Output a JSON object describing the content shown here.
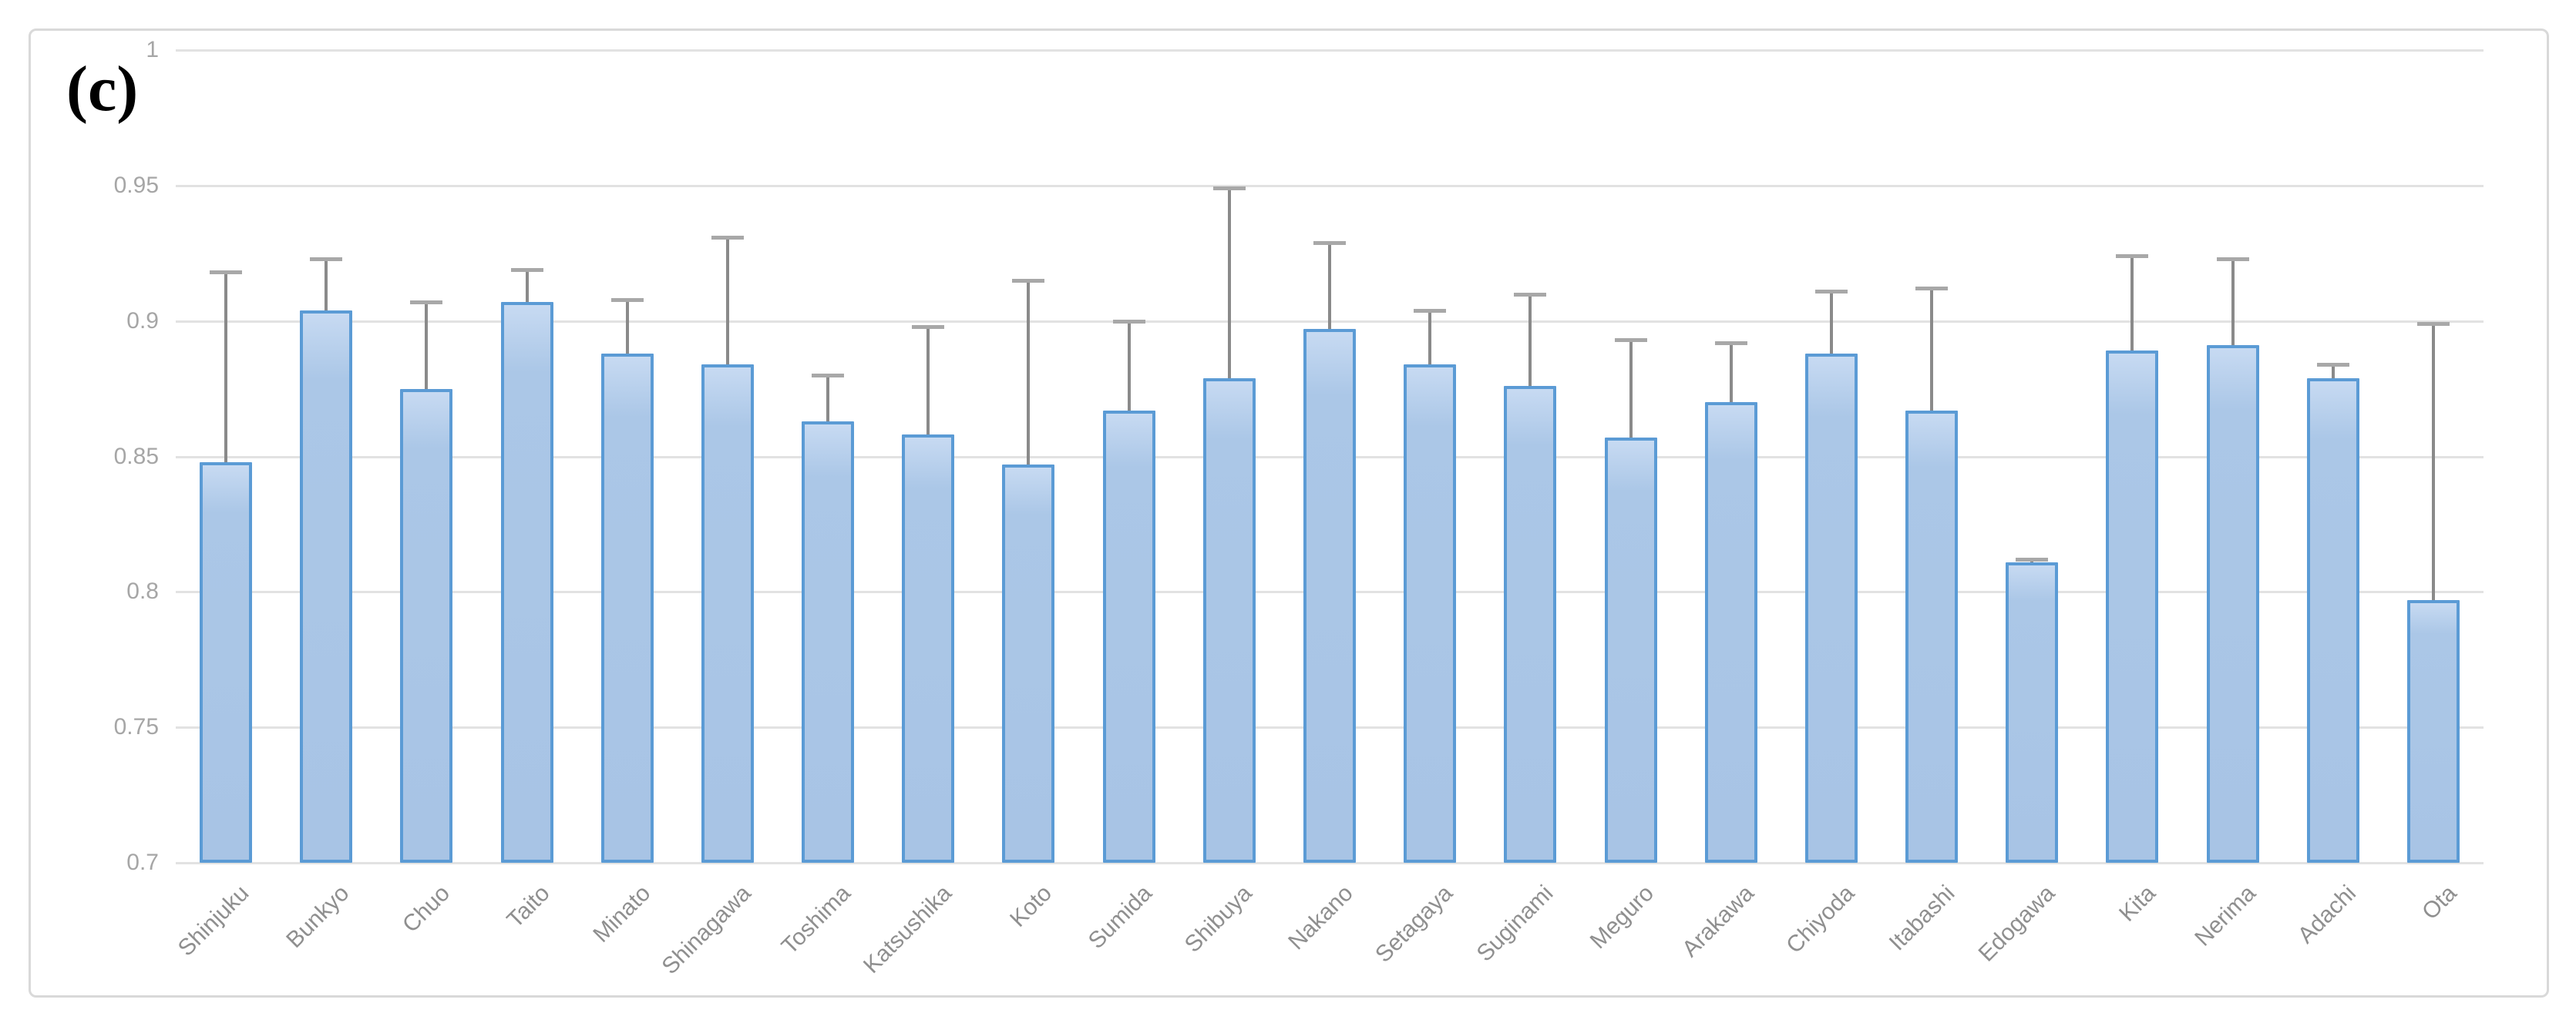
{
  "figure": {
    "panel_label": "(c)",
    "colors": {
      "bar_fill": "#abc7e7",
      "bar_border": "#5b9bd5",
      "error_line": "#8a8a8a",
      "error_cap": "#a8a8a8",
      "gridline": "#e2e2e2",
      "frame_border": "#d9d9d9",
      "ytick_text": "#a6a6a6",
      "xtick_text": "#8f8f8f",
      "background": "#ffffff"
    }
  },
  "chart_data": {
    "type": "bar",
    "title": "",
    "panel_label": "(c)",
    "xlabel": "",
    "ylabel": "",
    "legend": "none",
    "grid": "horizontal",
    "ylim": [
      0.7,
      1.0
    ],
    "ytick_values": [
      1,
      0.95,
      0.9,
      0.85,
      0.8,
      0.75,
      0.7
    ],
    "ytick_labels": [
      "1",
      "0.95",
      "0.9",
      "0.85",
      "0.8",
      "0.75",
      "0.7"
    ],
    "error_bars": "upper-only",
    "categories": [
      "Shinjuku",
      "Bunkyo",
      "Chuo",
      "Taito",
      "Minato",
      "Shinagawa",
      "Toshima",
      "Katsushika",
      "Koto",
      "Sumida",
      "Shibuya",
      "Nakano",
      "Setagaya",
      "Suginami",
      "Meguro",
      "Arakawa",
      "Chiyoda",
      "Itabashi",
      "Edogawa",
      "Kita",
      "Nerima",
      "Adachi",
      "Ota"
    ],
    "values": [
      0.848,
      0.904,
      0.875,
      0.907,
      0.888,
      0.884,
      0.863,
      0.858,
      0.847,
      0.867,
      0.879,
      0.897,
      0.884,
      0.876,
      0.857,
      0.87,
      0.888,
      0.867,
      0.811,
      0.889,
      0.891,
      0.879,
      0.797
    ],
    "error_top": [
      0.918,
      0.923,
      0.907,
      0.919,
      0.908,
      0.931,
      0.88,
      0.898,
      0.915,
      0.9,
      0.949,
      0.929,
      0.904,
      0.91,
      0.893,
      0.892,
      0.911,
      0.912,
      0.812,
      0.924,
      0.923,
      0.884,
      0.899
    ]
  }
}
